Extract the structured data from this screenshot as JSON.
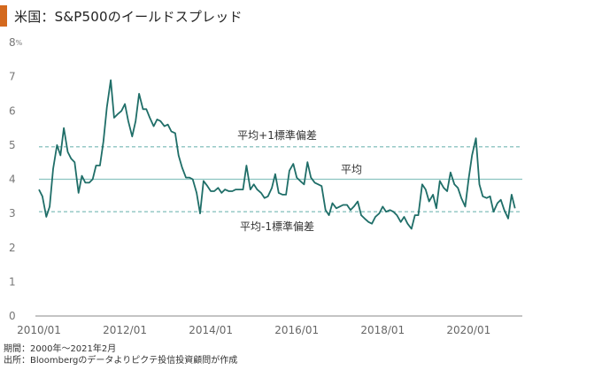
{
  "title": "米国：S&P500のイールドスプレッド",
  "footer": {
    "period": "期間：2000年～2021年2月",
    "source": "出所：Bloombergのデータよりピクテ投信投資顧問が作成"
  },
  "colors": {
    "accent": "#d4691e",
    "line": "#1f6e68",
    "mean": "#8cc4c0",
    "band": "#8cc4c0",
    "axis": "#888888"
  },
  "chart_data": {
    "type": "line",
    "title": "米国：S&P500のイールドスプレッド",
    "xlabel": "",
    "ylabel": "",
    "y_unit": "%",
    "ylim": [
      0,
      8
    ],
    "yticks": [
      "0",
      "1",
      "2",
      "3",
      "4",
      "5",
      "6",
      "7",
      "8"
    ],
    "xlim": [
      2010.0,
      2021.25
    ],
    "xticks": [
      {
        "value": 2010.0,
        "label": "2010/01"
      },
      {
        "value": 2012.0,
        "label": "2012/01"
      },
      {
        "value": 2014.0,
        "label": "2014/01"
      },
      {
        "value": 2016.0,
        "label": "2016/01"
      },
      {
        "value": 2018.0,
        "label": "2018/01"
      },
      {
        "value": 2020.0,
        "label": "2020/01"
      }
    ],
    "reference_lines": [
      {
        "label": "平均+1標準偏差",
        "value": 4.95,
        "style": "dashed"
      },
      {
        "label": "平均",
        "value": 4.0,
        "style": "solid"
      },
      {
        "label": "平均-1標準偏差",
        "value": 3.05,
        "style": "dashed"
      }
    ],
    "series": [
      {
        "x": [
          2010.0,
          2010.08,
          2010.17,
          2010.25,
          2010.33,
          2010.42,
          2010.5,
          2010.58,
          2010.67,
          2010.75,
          2010.83,
          2010.92,
          2011.0,
          2011.08,
          2011.17,
          2011.25,
          2011.33,
          2011.42,
          2011.5,
          2011.58,
          2011.67,
          2011.75,
          2011.83,
          2011.92,
          2012.0,
          2012.08,
          2012.17,
          2012.25,
          2012.33,
          2012.42,
          2012.5,
          2012.58,
          2012.67,
          2012.75,
          2012.83,
          2012.92,
          2013.0,
          2013.08,
          2013.17,
          2013.25,
          2013.33,
          2013.42,
          2013.5,
          2013.58,
          2013.67,
          2013.75,
          2013.83,
          2013.92,
          2014.0,
          2014.08,
          2014.17,
          2014.25,
          2014.33,
          2014.42,
          2014.5,
          2014.58,
          2014.67,
          2014.75,
          2014.83,
          2014.92,
          2015.0,
          2015.08,
          2015.17,
          2015.25,
          2015.33,
          2015.42,
          2015.5,
          2015.58,
          2015.67,
          2015.75,
          2015.83,
          2015.92,
          2016.0,
          2016.08,
          2016.17,
          2016.25,
          2016.33,
          2016.42,
          2016.5,
          2016.58,
          2016.67,
          2016.75,
          2016.83,
          2016.92,
          2017.0,
          2017.08,
          2017.17,
          2017.25,
          2017.33,
          2017.42,
          2017.5,
          2017.58,
          2017.67,
          2017.75,
          2017.83,
          2017.92,
          2018.0,
          2018.08,
          2018.17,
          2018.25,
          2018.33,
          2018.42,
          2018.5,
          2018.58,
          2018.67,
          2018.75,
          2018.83,
          2018.92,
          2019.0,
          2019.08,
          2019.17,
          2019.25,
          2019.33,
          2019.42,
          2019.5,
          2019.58,
          2019.67,
          2019.75,
          2019.83,
          2019.92,
          2020.0,
          2020.08,
          2020.17,
          2020.25,
          2020.33,
          2020.42,
          2020.5,
          2020.58,
          2020.67,
          2020.75,
          2020.83,
          2020.92,
          2021.0,
          2021.08
        ],
        "values": [
          3.7,
          3.5,
          2.9,
          3.2,
          4.3,
          5.0,
          4.7,
          5.5,
          4.8,
          4.6,
          4.5,
          3.6,
          4.1,
          3.9,
          3.9,
          4.0,
          4.4,
          4.4,
          5.1,
          6.1,
          6.9,
          5.8,
          5.9,
          6.0,
          6.2,
          5.7,
          5.25,
          5.7,
          6.5,
          6.05,
          6.05,
          5.8,
          5.55,
          5.75,
          5.7,
          5.55,
          5.6,
          5.4,
          5.35,
          4.7,
          4.35,
          4.05,
          4.05,
          4.0,
          3.6,
          3.0,
          3.95,
          3.8,
          3.65,
          3.65,
          3.75,
          3.6,
          3.7,
          3.65,
          3.65,
          3.7,
          3.7,
          3.7,
          4.4,
          3.7,
          3.85,
          3.7,
          3.6,
          3.45,
          3.5,
          3.75,
          4.15,
          3.6,
          3.55,
          3.55,
          4.25,
          4.45,
          4.05,
          3.95,
          3.85,
          4.5,
          4.05,
          3.9,
          3.85,
          3.8,
          3.1,
          2.95,
          3.3,
          3.15,
          3.2,
          3.25,
          3.25,
          3.1,
          3.2,
          3.35,
          2.95,
          2.85,
          2.75,
          2.7,
          2.9,
          3.0,
          3.2,
          3.05,
          3.1,
          3.05,
          2.95,
          2.75,
          2.9,
          2.7,
          2.55,
          2.95,
          2.95,
          3.85,
          3.7,
          3.35,
          3.55,
          3.15,
          3.95,
          3.75,
          3.65,
          4.2,
          3.85,
          3.75,
          3.45,
          3.2,
          4.0,
          4.7,
          5.2,
          3.85,
          3.5,
          3.45,
          3.5,
          3.05,
          3.3,
          3.4,
          3.1,
          2.85,
          3.55,
          3.15
        ]
      }
    ]
  }
}
